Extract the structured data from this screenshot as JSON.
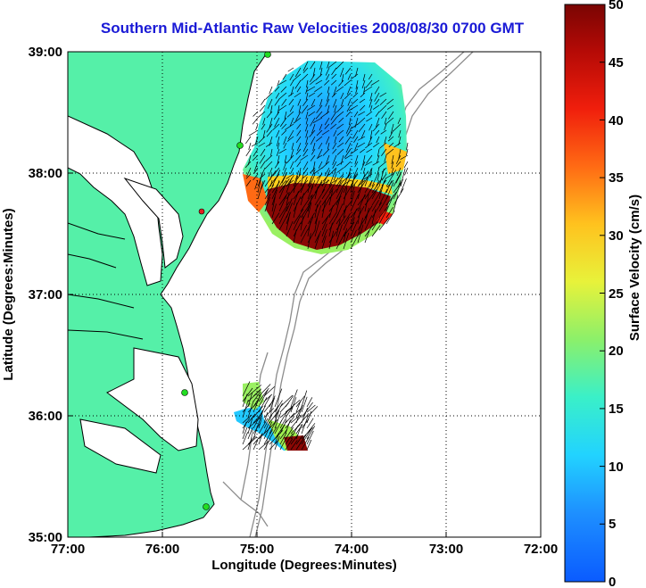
{
  "title": "Southern Mid-Atlantic Raw Velocities 2008/08/30 0700 GMT",
  "x_axis": {
    "label": "Longitude (Degrees:Minutes)",
    "ticks": [
      "77:00",
      "76:00",
      "75:00",
      "74:00",
      "73:00",
      "72:00"
    ],
    "range": [
      -77,
      -72
    ]
  },
  "y_axis": {
    "label": "Latitude (Degrees:Minutes)",
    "ticks": [
      "39:00",
      "38:00",
      "37:00",
      "36:00",
      "35:00"
    ],
    "range": [
      35,
      39
    ]
  },
  "colorbar": {
    "label": "Surface Velocity (cm/s)",
    "ticks": [
      "50",
      "45",
      "40",
      "35",
      "30",
      "25",
      "20",
      "15",
      "10",
      "5",
      "0"
    ],
    "range": [
      0,
      50
    ],
    "colormap": "jet"
  },
  "colors": {
    "land": "#55f0a8",
    "coast": "#000000",
    "bathymetry": "#8c8c8c",
    "title": "#1a1ad6"
  },
  "grid": "dotted"
}
